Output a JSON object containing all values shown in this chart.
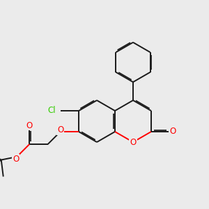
{
  "bg_color": "#ebebeb",
  "bond_color": "#1a1a1a",
  "o_color": "#ff0000",
  "cl_color": "#33cc00",
  "lw": 1.4,
  "dbo": 0.055,
  "bl": 1.0,
  "xlim": [
    0.0,
    10.0
  ],
  "ylim": [
    0.5,
    10.5
  ]
}
